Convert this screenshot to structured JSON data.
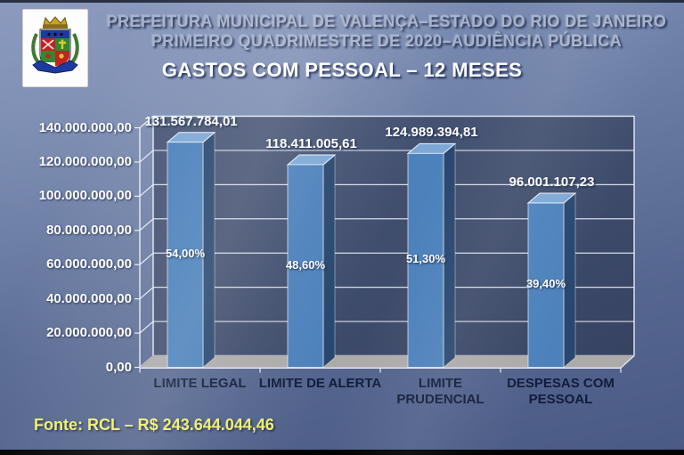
{
  "header": {
    "line1": "PREFEITURA MUNICIPAL DE VALENÇA–ESTADO DO RIO DE JANEIRO",
    "line2": "PRIMEIRO QUADRIMESTRE DE 2020–AUDIÊNCIA PÚBLICA"
  },
  "title": "GASTOS COM PESSOAL – 12 MESES",
  "footer": {
    "fonte": "Fonte: RCL – R$ 243.644.044,46"
  },
  "colors": {
    "background_top": "#8494ba",
    "background_bottom": "#495a84",
    "plot_wall_light": "#4a5878",
    "plot_wall_dark": "#364362",
    "plot_floor": "#adabaa",
    "plot_floor_edge": "#8f8d8c",
    "bar_front": "#4c81bb",
    "bar_side": "#28466e",
    "bar_top": "#7da8d6",
    "grid_line": "#e7edf7",
    "title_text": "#ffffff",
    "header_text": "#a6b2cd",
    "category_text": "#101c3a",
    "fonte_text": "#eef06a",
    "bottom_bar": "#000000"
  },
  "chart_data": {
    "type": "bar",
    "style": "3d-column",
    "title": "GASTOS COM PESSOAL – 12 MESES",
    "categories": [
      "LIMITE LEGAL",
      "LIMITE DE ALERTA",
      "LIMITE PRUDENCIAL",
      "DESPESAS COM PESSOAL"
    ],
    "values": [
      131567784.01,
      118411005.61,
      124989394.81,
      96001107.23
    ],
    "value_labels": [
      "131.567.784,01",
      "118.411.005,61",
      "124.989.394,81",
      "96.001.107,23"
    ],
    "percent_labels": [
      "54,00%",
      "48,60%",
      "51,30%",
      "39,40%"
    ],
    "y_ticks": [
      "140.000.000,00",
      "120.000.000,00",
      "100.000.000,00",
      "80.000.000,00",
      "60.000.000,00",
      "40.000.000,00",
      "20.000.000,00",
      "0,00"
    ],
    "ylim": [
      0,
      140000000
    ],
    "y_tick_interval": 20000000,
    "xlabel": "",
    "ylabel": "",
    "grid": true,
    "legend": "none"
  }
}
